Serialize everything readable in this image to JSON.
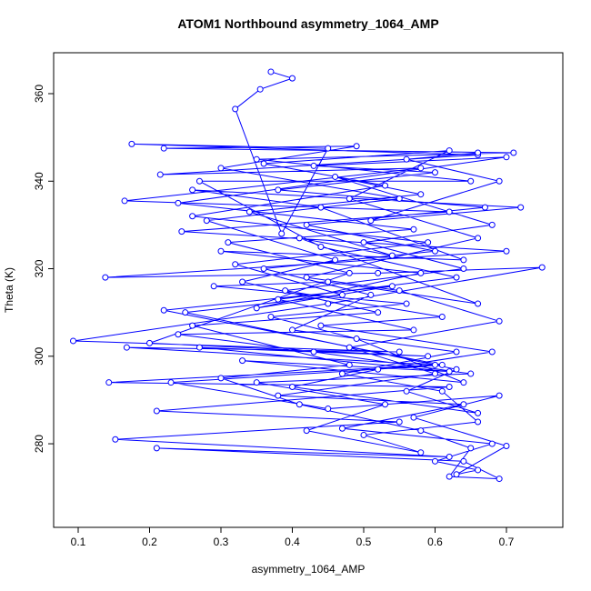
{
  "chart_data": {
    "type": "line",
    "title": "ATOM1 Northbound asymmetry_1064_AMP",
    "x_label": "asymmetry_1064_AMP",
    "y_label": "Theta (K)",
    "color": "#0000ff",
    "markers": true,
    "xlim": [
      0.0656,
      0.779
    ],
    "ylim": [
      260.9,
      369.35
    ],
    "xticks": [
      0.1,
      0.2,
      0.3,
      0.4,
      0.5,
      0.6,
      0.7
    ],
    "yticks": [
      280,
      300,
      320,
      340,
      360
    ],
    "x": [
      0.37,
      0.4,
      0.355,
      0.32,
      0.385,
      0.45,
      0.175,
      0.66,
      0.215,
      0.58,
      0.165,
      0.62,
      0.245,
      0.7,
      0.138,
      0.52,
      0.75,
      0.45,
      0.093,
      0.55,
      0.168,
      0.6,
      0.143,
      0.62,
      0.21,
      0.55,
      0.152,
      0.62,
      0.21,
      0.64,
      0.69,
      0.62,
      0.65,
      0.58,
      0.41,
      0.3,
      0.48,
      0.26,
      0.52,
      0.33,
      0.46,
      0.28,
      0.55,
      0.3,
      0.49,
      0.22,
      0.71,
      0.35,
      0.65,
      0.27,
      0.44,
      0.63,
      0.38,
      0.57,
      0.24,
      0.43,
      0.65,
      0.35,
      0.53,
      0.42,
      0.58,
      0.5,
      0.66,
      0.61,
      0.47,
      0.63,
      0.4,
      0.51,
      0.36,
      0.6,
      0.42,
      0.67,
      0.38,
      0.6,
      0.43,
      0.7,
      0.24,
      0.57,
      0.31,
      0.48,
      0.2,
      0.59,
      0.27,
      0.62,
      0.33,
      0.64,
      0.49,
      0.37,
      0.56,
      0.29,
      0.45,
      0.66,
      0.41,
      0.54,
      0.34,
      0.58,
      0.46,
      0.68,
      0.5,
      0.64,
      0.39,
      0.61,
      0.44,
      0.68,
      0.52,
      0.4,
      0.66,
      0.56,
      0.63,
      0.25,
      0.47,
      0.32,
      0.59,
      0.26,
      0.53,
      0.36,
      0.62,
      0.48,
      0.66,
      0.42,
      0.55,
      0.69,
      0.48,
      0.6,
      0.38,
      0.64,
      0.47,
      0.68,
      0.6,
      0.66,
      0.63,
      0.7,
      0.57,
      0.69,
      0.45,
      0.23,
      0.61,
      0.22,
      0.54,
      0.35,
      0.58,
      0.3,
      0.64,
      0.44,
      0.26,
      0.72,
      0.51,
      0.69,
      0.56,
      0.66
    ],
    "values": [
      365,
      363.5,
      361,
      356.5,
      328,
      347.5,
      348.5,
      346,
      341.5,
      343,
      335.5,
      333,
      328.5,
      324,
      318,
      319,
      320.3,
      312,
      303.5,
      301,
      302,
      298,
      294,
      293,
      287.5,
      285,
      281,
      277,
      279,
      276,
      272,
      272.5,
      279,
      283,
      289,
      295,
      298,
      307,
      310,
      317,
      322,
      331,
      336,
      343,
      348,
      347.5,
      346.5,
      345,
      340,
      340,
      325,
      318,
      313,
      306,
      305,
      301,
      296,
      294,
      289,
      283,
      278,
      282,
      285,
      292,
      296,
      301,
      306,
      314,
      320,
      324,
      330,
      334,
      338,
      342,
      343.5,
      345.5,
      335,
      329,
      326,
      319,
      303,
      300,
      302,
      296.5,
      299,
      294,
      304,
      309,
      312,
      316,
      317,
      312,
      327,
      323,
      333,
      337,
      341,
      330,
      326,
      320,
      315,
      309,
      307,
      301,
      297,
      293,
      287,
      292,
      297,
      310,
      314,
      321,
      326,
      332,
      339,
      344,
      347,
      336,
      327,
      318,
      315,
      308,
      302,
      296,
      291,
      289,
      283.5,
      280,
      276,
      274,
      273,
      279.5,
      286,
      291,
      288,
      294,
      298,
      310.5,
      316,
      311,
      319,
      324,
      322,
      334,
      338,
      334,
      331,
      340,
      345,
      346.5
    ]
  }
}
